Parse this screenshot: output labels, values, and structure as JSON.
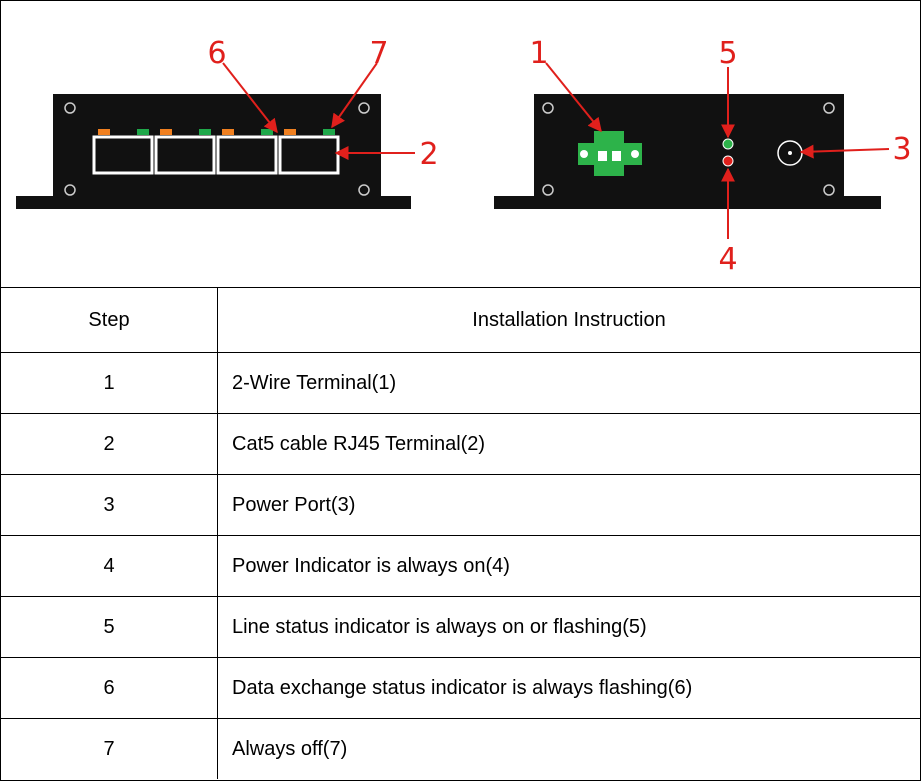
{
  "diagram": {
    "callouts": [
      "1",
      "2",
      "3",
      "4",
      "5",
      "6",
      "7"
    ]
  },
  "table": {
    "header": [
      "Step",
      "Installation Instruction"
    ],
    "rows": [
      [
        "1",
        "2-Wire Terminal(1)"
      ],
      [
        "2",
        "Cat5 cable RJ45 Terminal(2)"
      ],
      [
        "3",
        "Power Port(3)"
      ],
      [
        "4",
        "Power Indicator is always on(4)"
      ],
      [
        "5",
        "Line status indicator is always on or flashing(5)"
      ],
      [
        "6",
        "Data exchange status indicator is always flashing(6)"
      ],
      [
        "7",
        "Always off(7)"
      ]
    ]
  }
}
